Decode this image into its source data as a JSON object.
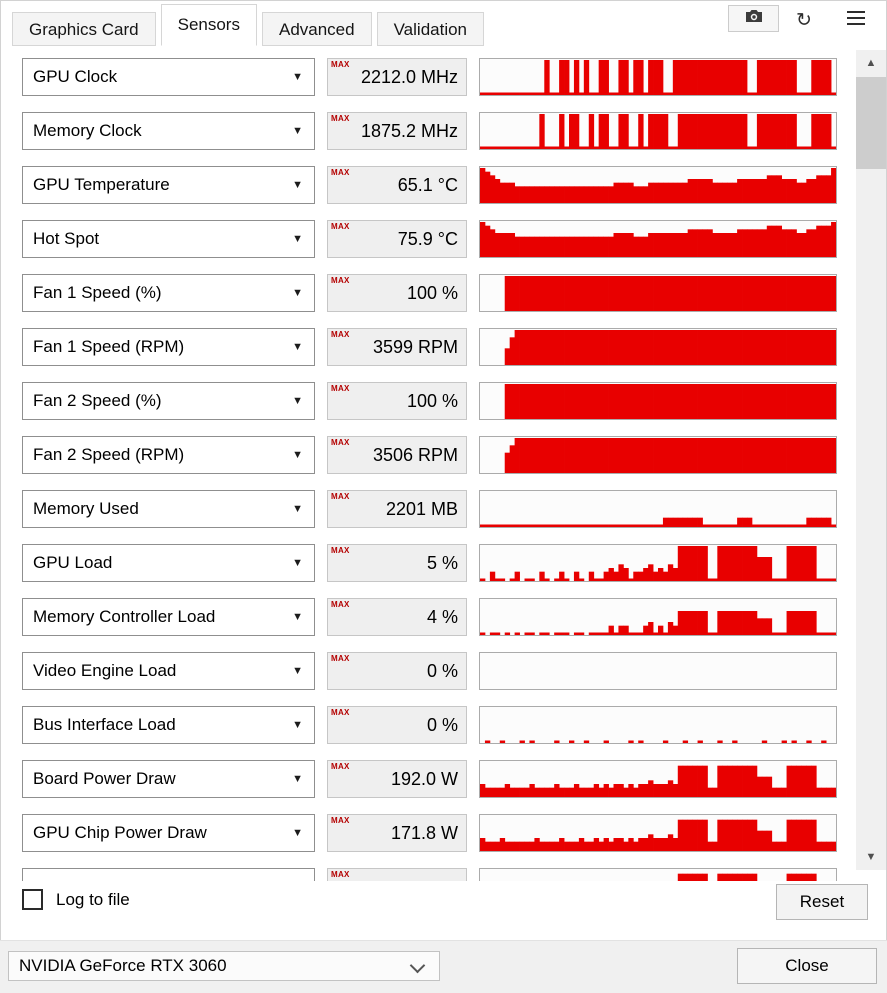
{
  "accent": "#e80000",
  "tabs": [
    {
      "label": "Graphics Card",
      "active": false
    },
    {
      "label": "Sensors",
      "active": true
    },
    {
      "label": "Advanced",
      "active": false
    },
    {
      "label": "Validation",
      "active": false
    }
  ],
  "glyphs": {
    "dropdown_arrow": "▼",
    "scroll_up": "▲",
    "scroll_down": "▼",
    "refresh": "↻"
  },
  "icons": {
    "camera": "camera-icon",
    "refresh": "refresh-icon",
    "menu": "menu-icon"
  },
  "sensors": [
    {
      "name": "GPU Clock",
      "stat": "MAX",
      "value": "2212.0 MHz",
      "graph": "111111111111191199191911991199199199911999999999999999119999999911199991"
    },
    {
      "name": "Memory Clock",
      "stat": "MAX",
      "value": "1875.2 MHz",
      "graph": "111111111111911191991191991199119199991199999999999999119999999911199991"
    },
    {
      "name": "GPU Temperature",
      "stat": "MAX",
      "value": "65.1 °C",
      "graph": "987655544444444444444444444555544455555555666665555566666677766655667779"
    },
    {
      "name": "Hot Spot",
      "stat": "MAX",
      "value": "75.9 °C",
      "graph": "987666655555555555555555555666655566666666777776666677777788877766778889"
    },
    {
      "name": "Fan 1 Speed (%)",
      "stat": "MAX",
      "value": "100 %",
      "graph": "000009999999999999999999999999999999999999999999999999999999999999999999"
    },
    {
      "name": "Fan 1 Speed (RPM)",
      "stat": "MAX",
      "value": "3599 RPM",
      "graph": "000004799999999999999999999999999999999999999999999999999999999999999999"
    },
    {
      "name": "Fan 2 Speed (%)",
      "stat": "MAX",
      "value": "100 %",
      "graph": "000009999999999999999999999999999999999999999999999999999999999999999999"
    },
    {
      "name": "Fan 2 Speed (RPM)",
      "stat": "MAX",
      "value": "3506 RPM",
      "graph": "000005799999999999999999999999999999999999999999999999999999999999999999"
    },
    {
      "name": "Memory Used",
      "stat": "MAX",
      "value": "2201 MB",
      "graph": "111111111111111111111111111111111111122222222111111122211111111111222221"
    },
    {
      "name": "GPU Load",
      "stat": "MAX",
      "value": "5 %",
      "graph": "102110120110210121021021123243122342324399999911999999996661119999991111"
    },
    {
      "name": "Memory Controller Load",
      "stat": "MAX",
      "value": "4 %",
      "graph": "101101010110110111011011112122111231213266666611666666664441116666661111"
    },
    {
      "name": "Video Engine Load",
      "stat": "MAX",
      "value": "0 %",
      "graph": "000000000000000000000000000000000000000000000000000000000000000000000000"
    },
    {
      "name": "Bus Interface Load",
      "stat": "MAX",
      "value": "0 %",
      "graph": "010010001010000100100100010000101000010001001000100100000100010100100100"
    },
    {
      "name": "Board Power Draw",
      "stat": "MAX",
      "value": "192.0 W",
      "graph": "322223222232222322232223232332323343334388888822888888885552228888882222"
    },
    {
      "name": "GPU Chip Power Draw",
      "stat": "MAX",
      "value": "171.8 W",
      "graph": "322232222223222232223223232332323343334388888822888888885552228888882222"
    },
    {
      "name": "",
      "stat": "MAX",
      "value": "",
      "graph": "222232222232223222232223232332323343334388888822888888885552228888882222"
    }
  ],
  "footer": {
    "log_label": "Log to file",
    "log_checked": false,
    "reset_label": "Reset"
  },
  "bottom": {
    "gpu_select": "NVIDIA GeForce RTX 3060",
    "close_label": "Close"
  }
}
